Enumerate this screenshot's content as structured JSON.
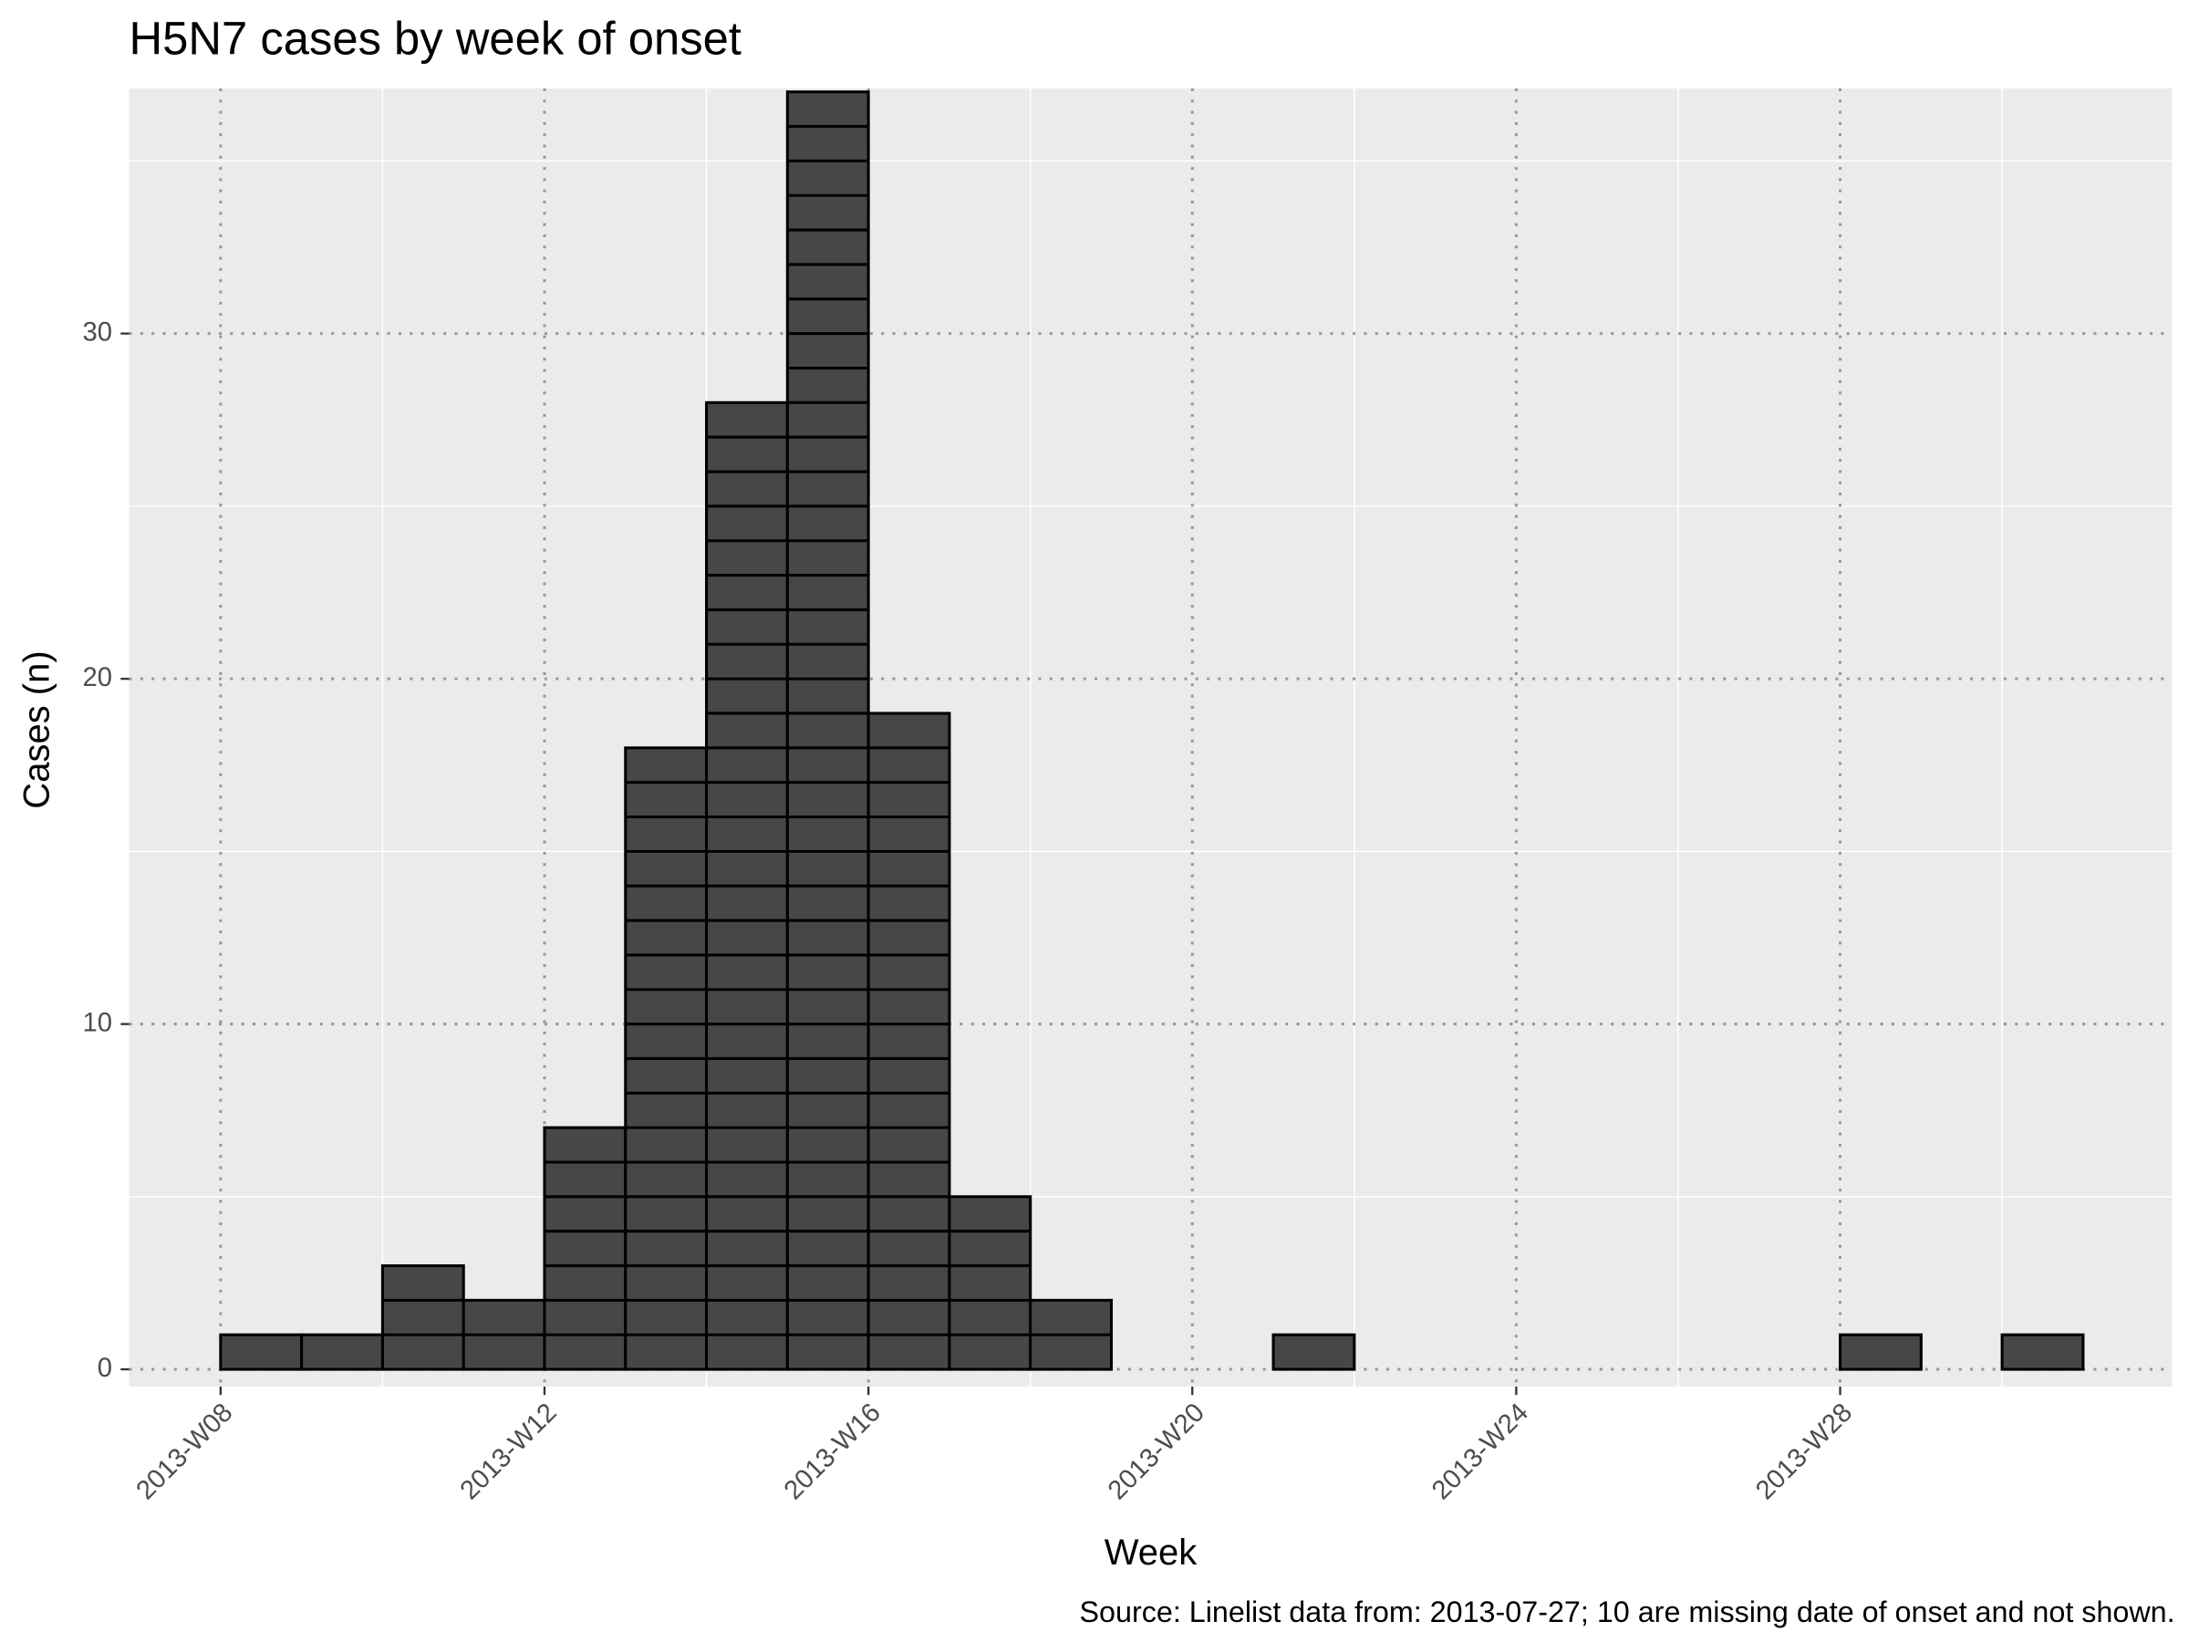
{
  "chart_data": {
    "type": "histogram",
    "title": "H5N7 cases by week of onset",
    "x_label": "Week",
    "y_label": "Cases (n)",
    "caption": "Source: Linelist data from: 2013-07-27; 10 are missing date of onset and not shown.",
    "bins": [
      8,
      9,
      10,
      11,
      12,
      13,
      14,
      15,
      16,
      17,
      18,
      19,
      20,
      21,
      22,
      23,
      24,
      25,
      26,
      27,
      28,
      29,
      30,
      31
    ],
    "counts": [
      1,
      1,
      3,
      2,
      7,
      18,
      28,
      37,
      19,
      5,
      2,
      0,
      0,
      1,
      0,
      0,
      0,
      0,
      0,
      0,
      1,
      0,
      1
    ],
    "color": "#474747",
    "edge_color": "#000000",
    "xlim": [
      6.87,
      32.1
    ],
    "xticks": [
      {
        "value": 8,
        "label": "2013-W08"
      },
      {
        "value": 12,
        "label": "2013-W12"
      },
      {
        "value": 16,
        "label": "2013-W16"
      },
      {
        "value": 20,
        "label": "2013-W20"
      },
      {
        "value": 24,
        "label": "2013-W24"
      },
      {
        "value": 28,
        "label": "2013-W28"
      }
    ],
    "ylim": [
      -0.5,
      37.1
    ],
    "yticks": [
      0,
      10,
      20,
      30
    ],
    "grid": true
  }
}
